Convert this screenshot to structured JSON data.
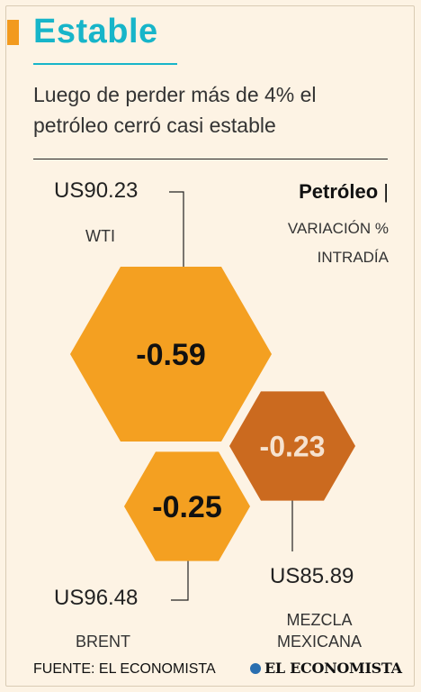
{
  "header": {
    "title": "Estable",
    "subtitle": "Luego de perder más de 4% el petróleo cerró casi estable"
  },
  "legend": {
    "title_bold": "Petróleo",
    "title_sep": "|",
    "subtitle_line1": "VARIACIÓN %",
    "subtitle_line2": "INTRADÍA"
  },
  "colors": {
    "accent": "#17b5c9",
    "hex_orange": "#f4a021",
    "hex_dark_orange": "#cb6a1f",
    "background": "#fdf3e4"
  },
  "chart_data": {
    "type": "bubble-hexagon",
    "items": [
      {
        "name": "WTI",
        "price": "US90.23",
        "change": -0.59,
        "change_label": "-0.59",
        "color": "#f4a021"
      },
      {
        "name": "BRENT",
        "price": "US96.48",
        "change": -0.25,
        "change_label": "-0.25",
        "color": "#f4a021"
      },
      {
        "name": "MEZCLA MEXICANA",
        "price": "US85.89",
        "change": -0.23,
        "change_label": "-0.23",
        "color": "#cb6a1f"
      }
    ]
  },
  "footer": {
    "source": "FUENTE: EL ECONOMISTA",
    "logo_text": "EL ECONOMISTA"
  }
}
